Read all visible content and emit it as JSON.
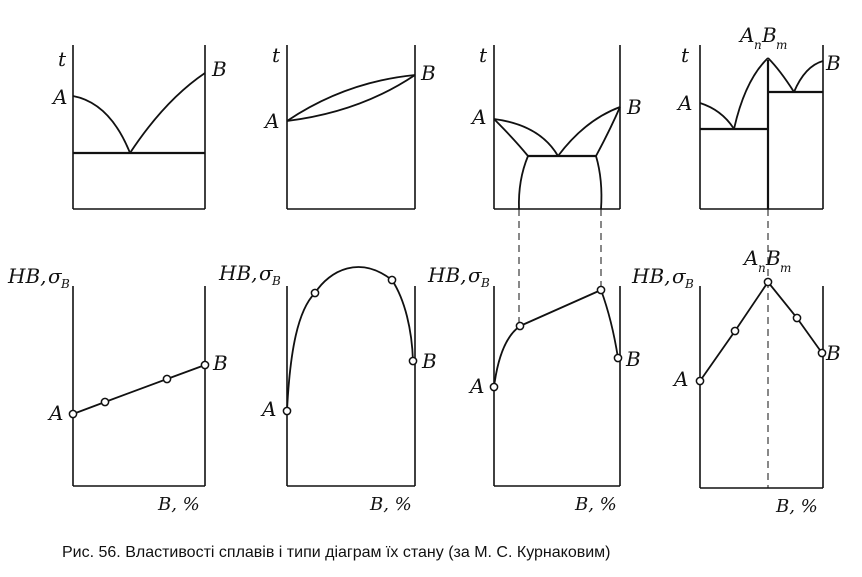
{
  "labels": {
    "t": "t",
    "A": "A",
    "B": "B",
    "HB": "HB,",
    "sigma": "σ",
    "sigma_sub": "B",
    "AnBm_A": "A",
    "AnBm_n": "n",
    "AnBm_B": "B",
    "AnBm_m": "m",
    "x_axis": "B, %"
  },
  "caption": "Рис. 56. Властивості сплавів і типи діаграм їх стану (за М. С. Курнаковим)"
}
